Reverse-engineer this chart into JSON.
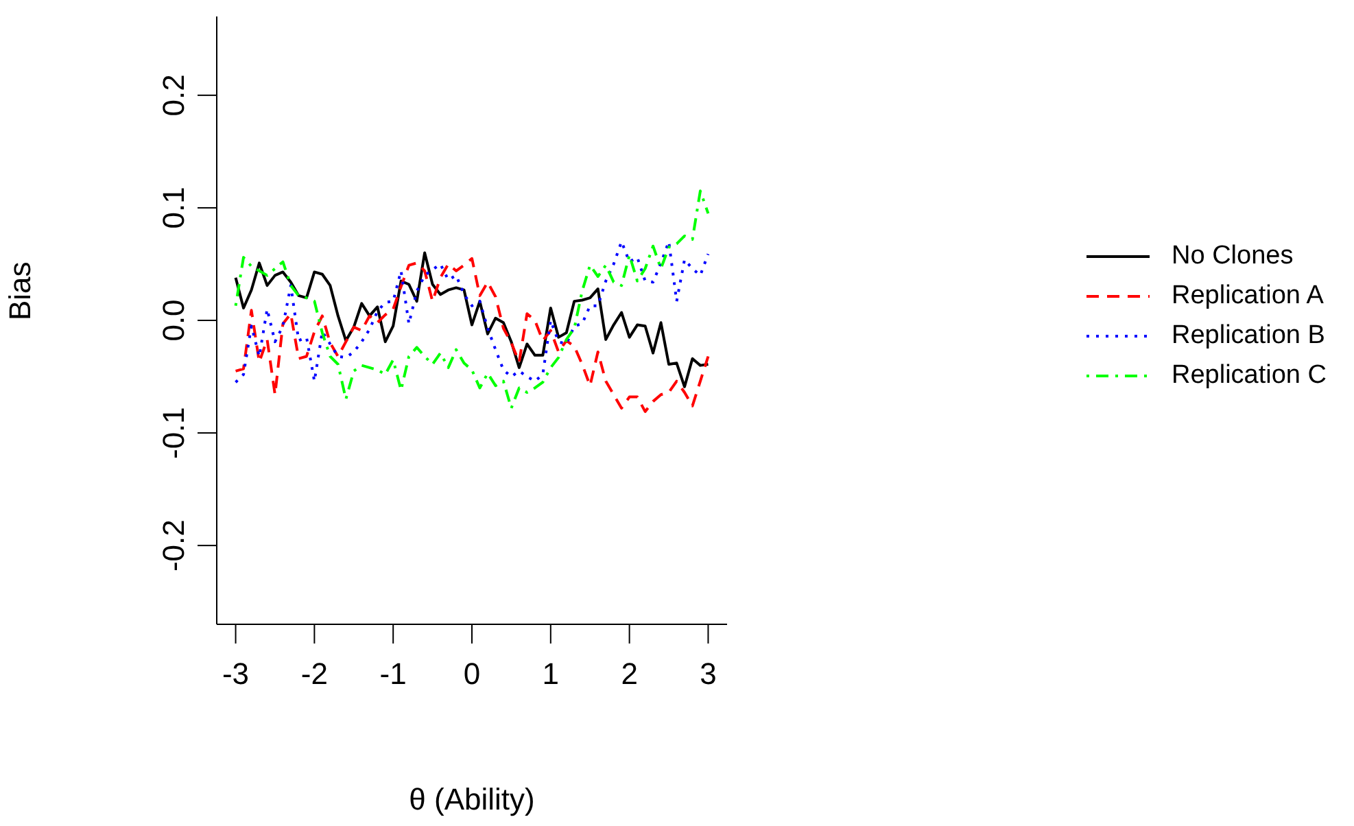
{
  "chart_data": {
    "type": "line",
    "xlabel": "θ (Ability)",
    "ylabel": "Bias",
    "x": [
      -3.0,
      -2.9,
      -2.8,
      -2.7,
      -2.6,
      -2.5,
      -2.4,
      -2.3,
      -2.2,
      -2.1,
      -2.0,
      -1.9,
      -1.8,
      -1.7,
      -1.6,
      -1.5,
      -1.4,
      -1.3,
      -1.2,
      -1.1,
      -1.0,
      -0.9,
      -0.8,
      -0.7,
      -0.6,
      -0.5,
      -0.4,
      -0.3,
      -0.2,
      -0.1,
      0.0,
      0.1,
      0.2,
      0.3,
      0.4,
      0.5,
      0.6,
      0.7,
      0.8,
      0.9,
      1.0,
      1.1,
      1.2,
      1.3,
      1.4,
      1.5,
      1.6,
      1.7,
      1.8,
      1.9,
      2.0,
      2.1,
      2.2,
      2.3,
      2.4,
      2.5,
      2.6,
      2.7,
      2.8,
      2.9,
      3.0
    ],
    "series": [
      {
        "name": "No Clones",
        "color": "#000000",
        "line_style": "solid",
        "values": [
          0.038,
          0.011,
          0.027,
          0.051,
          0.031,
          0.04,
          0.043,
          0.034,
          0.022,
          0.02,
          0.043,
          0.041,
          0.031,
          0.004,
          -0.018,
          -0.006,
          0.015,
          0.004,
          0.012,
          -0.019,
          -0.005,
          0.035,
          0.032,
          0.017,
          0.06,
          0.032,
          0.023,
          0.027,
          0.029,
          0.027,
          -0.004,
          0.017,
          -0.012,
          0.002,
          -0.002,
          -0.019,
          -0.042,
          -0.021,
          -0.031,
          -0.031,
          0.011,
          -0.015,
          -0.011,
          0.017,
          0.018,
          0.02,
          0.028,
          -0.017,
          -0.004,
          0.007,
          -0.015,
          -0.004,
          -0.005,
          -0.029,
          -0.002,
          -0.039,
          -0.038,
          -0.059,
          -0.034,
          -0.04,
          -0.039
        ]
      },
      {
        "name": "Replication A",
        "color": "#ff0000",
        "line_style": "dashed",
        "values": [
          -0.045,
          -0.043,
          0.009,
          -0.037,
          -0.017,
          -0.066,
          -0.003,
          0.006,
          -0.034,
          -0.032,
          -0.01,
          0.004,
          -0.02,
          -0.032,
          -0.019,
          -0.006,
          -0.009,
          0.004,
          -0.002,
          0.005,
          0.01,
          0.03,
          0.049,
          0.051,
          0.044,
          0.017,
          0.038,
          0.05,
          0.044,
          0.049,
          0.055,
          0.022,
          0.034,
          0.021,
          -0.007,
          -0.02,
          -0.037,
          0.006,
          0.0,
          -0.018,
          -0.009,
          -0.028,
          -0.018,
          -0.023,
          -0.039,
          -0.058,
          -0.028,
          -0.054,
          -0.066,
          -0.078,
          -0.068,
          -0.068,
          -0.081,
          -0.072,
          -0.066,
          -0.064,
          -0.054,
          -0.064,
          -0.076,
          -0.054,
          -0.032
        ]
      },
      {
        "name": "Replication B",
        "color": "#0000ff",
        "line_style": "dotted",
        "values": [
          -0.055,
          -0.048,
          -0.005,
          -0.032,
          0.01,
          -0.019,
          -0.005,
          0.031,
          -0.018,
          -0.015,
          -0.054,
          -0.01,
          -0.021,
          -0.032,
          -0.033,
          -0.028,
          -0.019,
          -0.008,
          0.008,
          0.016,
          0.017,
          0.044,
          -0.003,
          0.026,
          0.04,
          0.045,
          0.05,
          0.036,
          0.04,
          0.023,
          0.013,
          0.017,
          -0.007,
          -0.026,
          -0.044,
          -0.05,
          -0.045,
          -0.05,
          -0.054,
          -0.048,
          0.0,
          -0.019,
          -0.021,
          -0.005,
          -0.003,
          0.013,
          0.013,
          0.035,
          0.05,
          0.07,
          0.052,
          0.056,
          0.035,
          0.034,
          0.051,
          0.07,
          0.017,
          0.054,
          0.046,
          0.04,
          0.059
        ]
      },
      {
        "name": "Replication C",
        "color": "#00ff00",
        "line_style": "dashdot",
        "values": [
          0.013,
          0.056,
          0.048,
          0.044,
          0.04,
          0.046,
          0.052,
          0.031,
          0.022,
          0.02,
          0.017,
          -0.011,
          -0.032,
          -0.039,
          -0.07,
          -0.045,
          -0.04,
          -0.042,
          -0.044,
          -0.048,
          -0.035,
          -0.062,
          -0.032,
          -0.024,
          -0.032,
          -0.039,
          -0.029,
          -0.042,
          -0.026,
          -0.038,
          -0.044,
          -0.06,
          -0.047,
          -0.058,
          -0.054,
          -0.078,
          -0.06,
          -0.064,
          -0.06,
          -0.055,
          -0.042,
          -0.033,
          -0.017,
          -0.007,
          0.026,
          0.049,
          0.039,
          0.049,
          0.034,
          0.031,
          0.058,
          0.035,
          0.046,
          0.066,
          0.046,
          0.065,
          0.068,
          0.075,
          0.072,
          0.115,
          0.095
        ]
      }
    ],
    "xlim": [
      -3.24,
      3.24
    ],
    "xticks": [
      -3,
      -2,
      -1,
      0,
      1,
      2,
      3
    ],
    "ylim": [
      -0.27,
      0.27
    ],
    "yticks": [
      -0.2,
      -0.1,
      {
        "value": 0,
        "label": "0.0"
      },
      0.1,
      0.2
    ],
    "grid": false,
    "legend": "right",
    "marker": "none"
  }
}
